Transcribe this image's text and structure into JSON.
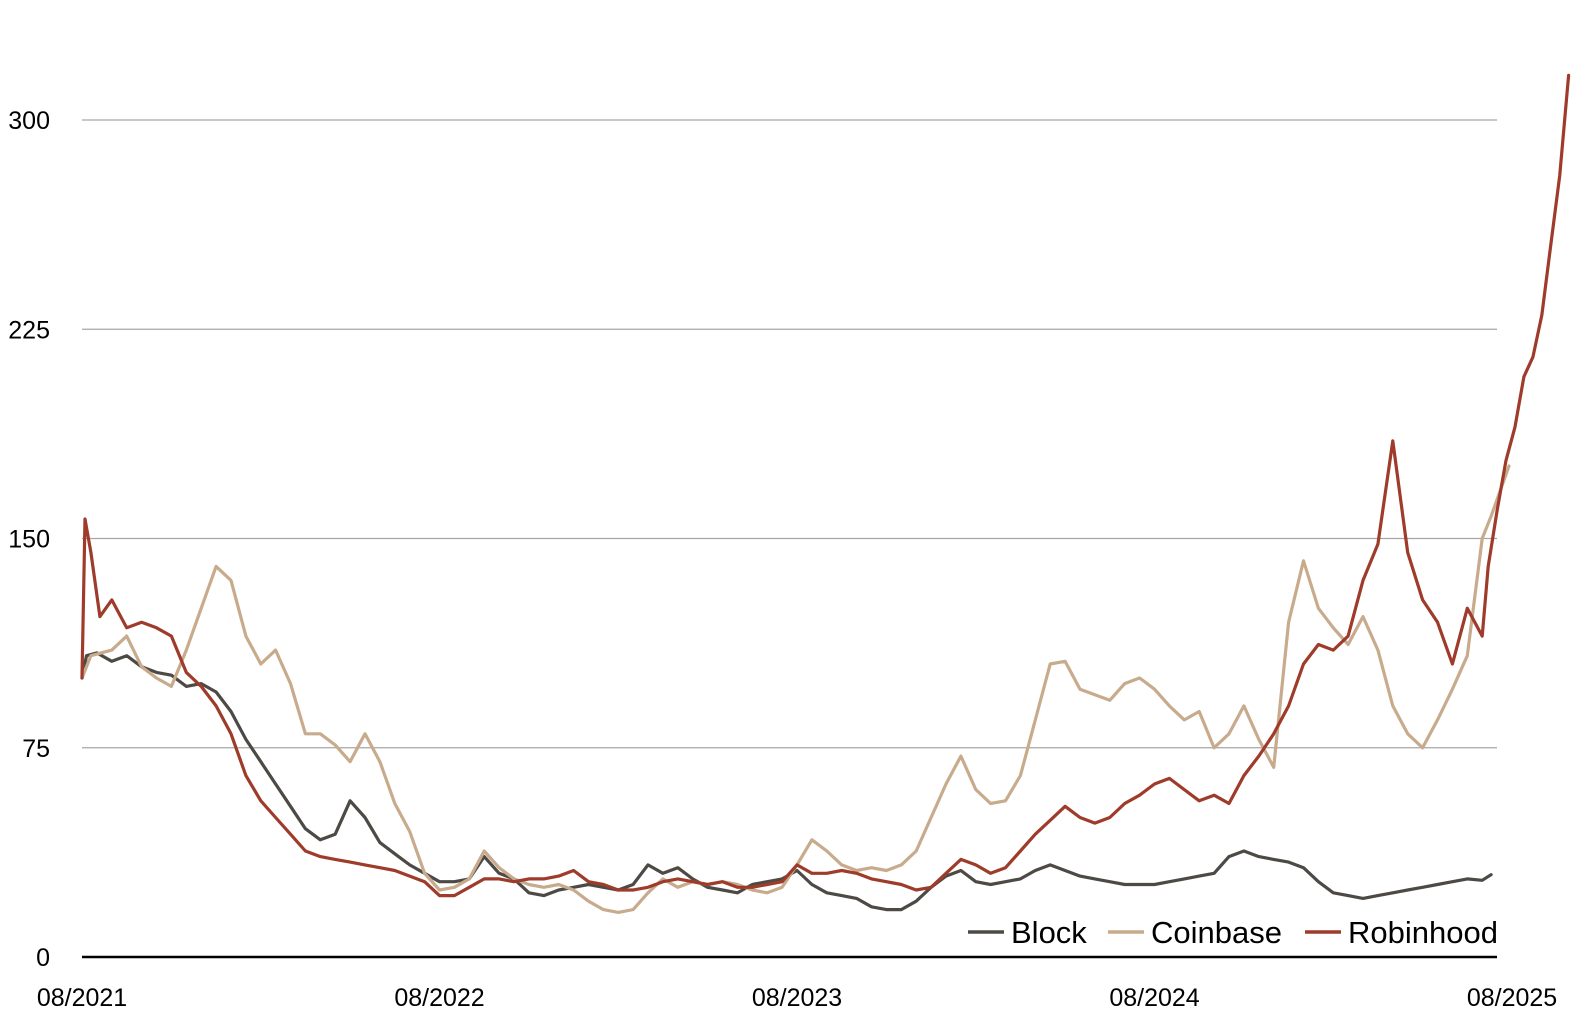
{
  "chart_data": {
    "type": "line",
    "title": "",
    "xlabel": "",
    "ylabel": "",
    "ylim": [
      0,
      315
    ],
    "yticks": [
      0,
      75,
      150,
      225,
      300
    ],
    "xlim": [
      0,
      48
    ],
    "xticks": [
      {
        "x": 0,
        "label": "08/2021"
      },
      {
        "x": 12,
        "label": "08/2022"
      },
      {
        "x": 24,
        "label": "08/2023"
      },
      {
        "x": 36,
        "label": "08/2024"
      },
      {
        "x": 48,
        "label": "08/2025"
      }
    ],
    "grid": true,
    "legend": "bottom-right",
    "series": [
      {
        "name": "Block",
        "color": "#4d4a45",
        "points": [
          [
            0,
            100
          ],
          [
            0.15,
            108
          ],
          [
            0.5,
            109
          ],
          [
            1,
            106
          ],
          [
            1.5,
            108
          ],
          [
            2,
            104
          ],
          [
            2.5,
            102
          ],
          [
            3,
            101
          ],
          [
            3.5,
            97
          ],
          [
            4,
            98
          ],
          [
            4.5,
            95
          ],
          [
            5,
            88
          ],
          [
            5.5,
            78
          ],
          [
            6,
            70
          ],
          [
            6.5,
            62
          ],
          [
            7,
            54
          ],
          [
            7.5,
            46
          ],
          [
            8,
            42
          ],
          [
            8.5,
            44
          ],
          [
            9,
            56
          ],
          [
            9.5,
            50
          ],
          [
            10,
            41
          ],
          [
            10.5,
            37
          ],
          [
            11,
            33
          ],
          [
            11.5,
            30
          ],
          [
            12,
            27
          ],
          [
            12.5,
            27
          ],
          [
            13,
            28
          ],
          [
            13.5,
            36
          ],
          [
            14,
            30
          ],
          [
            14.5,
            28
          ],
          [
            15,
            23
          ],
          [
            15.5,
            22
          ],
          [
            16,
            24
          ],
          [
            16.5,
            25
          ],
          [
            17,
            26
          ],
          [
            17.5,
            25
          ],
          [
            18,
            24
          ],
          [
            18.5,
            26
          ],
          [
            19,
            33
          ],
          [
            19.5,
            30
          ],
          [
            20,
            32
          ],
          [
            20.5,
            28
          ],
          [
            21,
            25
          ],
          [
            21.5,
            24
          ],
          [
            22,
            23
          ],
          [
            22.5,
            26
          ],
          [
            23,
            27
          ],
          [
            23.5,
            28
          ],
          [
            24,
            31
          ],
          [
            24.5,
            26
          ],
          [
            25,
            23
          ],
          [
            25.5,
            22
          ],
          [
            26,
            21
          ],
          [
            26.5,
            18
          ],
          [
            27,
            17
          ],
          [
            27.5,
            17
          ],
          [
            28,
            20
          ],
          [
            28.5,
            25
          ],
          [
            29,
            29
          ],
          [
            29.5,
            31
          ],
          [
            30,
            27
          ],
          [
            30.5,
            26
          ],
          [
            31,
            27
          ],
          [
            31.5,
            28
          ],
          [
            32,
            31
          ],
          [
            32.5,
            33
          ],
          [
            33,
            31
          ],
          [
            33.5,
            29
          ],
          [
            34,
            28
          ],
          [
            34.5,
            27
          ],
          [
            35,
            26
          ],
          [
            35.5,
            26
          ],
          [
            36,
            26
          ],
          [
            36.5,
            27
          ],
          [
            37,
            28
          ],
          [
            37.5,
            29
          ],
          [
            38,
            30
          ],
          [
            38.5,
            36
          ],
          [
            39,
            38
          ],
          [
            39.5,
            36
          ],
          [
            40,
            35
          ],
          [
            40.5,
            34
          ],
          [
            41,
            32
          ],
          [
            41.5,
            27
          ],
          [
            42,
            23
          ],
          [
            42.5,
            22
          ],
          [
            43,
            21
          ],
          [
            43.5,
            22
          ],
          [
            44,
            23
          ],
          [
            44.5,
            24
          ],
          [
            45,
            25
          ],
          [
            45.5,
            26
          ],
          [
            46,
            27
          ],
          [
            46.5,
            28
          ],
          [
            47,
            27.5
          ],
          [
            47.3,
            29.5
          ]
        ]
      },
      {
        "name": "Coinbase",
        "color": "#c7ab8c",
        "points": [
          [
            0,
            100
          ],
          [
            0.3,
            108
          ],
          [
            1,
            110
          ],
          [
            1.5,
            115
          ],
          [
            2,
            104
          ],
          [
            2.5,
            100
          ],
          [
            3,
            97
          ],
          [
            3.5,
            110
          ],
          [
            4,
            125
          ],
          [
            4.5,
            140
          ],
          [
            5,
            135
          ],
          [
            5.5,
            115
          ],
          [
            6,
            105
          ],
          [
            6.5,
            110
          ],
          [
            7,
            98
          ],
          [
            7.5,
            80
          ],
          [
            8,
            80
          ],
          [
            8.5,
            76
          ],
          [
            9,
            70
          ],
          [
            9.5,
            80
          ],
          [
            10,
            70
          ],
          [
            10.5,
            55
          ],
          [
            11,
            45
          ],
          [
            11.5,
            30
          ],
          [
            12,
            24
          ],
          [
            12.5,
            25
          ],
          [
            13,
            28
          ],
          [
            13.5,
            38
          ],
          [
            14,
            32
          ],
          [
            14.5,
            28
          ],
          [
            15,
            26
          ],
          [
            15.5,
            25
          ],
          [
            16,
            26
          ],
          [
            16.5,
            24
          ],
          [
            17,
            20
          ],
          [
            17.5,
            17
          ],
          [
            18,
            16
          ],
          [
            18.5,
            17
          ],
          [
            19,
            23
          ],
          [
            19.5,
            28
          ],
          [
            20,
            25
          ],
          [
            20.5,
            27
          ],
          [
            21,
            26
          ],
          [
            21.5,
            27
          ],
          [
            22,
            26
          ],
          [
            22.5,
            24
          ],
          [
            23,
            23
          ],
          [
            23.5,
            25
          ],
          [
            24,
            33
          ],
          [
            24.5,
            42
          ],
          [
            25,
            38
          ],
          [
            25.5,
            33
          ],
          [
            26,
            31
          ],
          [
            26.5,
            32
          ],
          [
            27,
            31
          ],
          [
            27.5,
            33
          ],
          [
            28,
            38
          ],
          [
            28.5,
            50
          ],
          [
            29,
            62
          ],
          [
            29.5,
            72
          ],
          [
            30,
            60
          ],
          [
            30.5,
            55
          ],
          [
            31,
            56
          ],
          [
            31.5,
            65
          ],
          [
            32,
            85
          ],
          [
            32.5,
            105
          ],
          [
            33,
            106
          ],
          [
            33.5,
            96
          ],
          [
            34,
            94
          ],
          [
            34.5,
            92
          ],
          [
            35,
            98
          ],
          [
            35.5,
            100
          ],
          [
            36,
            96
          ],
          [
            36.5,
            90
          ],
          [
            37,
            85
          ],
          [
            37.5,
            88
          ],
          [
            38,
            75
          ],
          [
            38.5,
            80
          ],
          [
            39,
            90
          ],
          [
            39.5,
            78
          ],
          [
            40,
            68
          ],
          [
            40.5,
            120
          ],
          [
            41,
            142
          ],
          [
            41.5,
            125
          ],
          [
            42,
            118
          ],
          [
            42.5,
            112
          ],
          [
            43,
            122
          ],
          [
            43.5,
            110
          ],
          [
            44,
            90
          ],
          [
            44.5,
            80
          ],
          [
            45,
            75
          ],
          [
            45.5,
            85
          ],
          [
            46,
            96
          ],
          [
            46.5,
            108
          ],
          [
            47,
            150
          ],
          [
            47.3,
            158
          ],
          [
            47.6,
            167
          ],
          [
            47.9,
            176
          ]
        ]
      },
      {
        "name": "Robinhood",
        "color": "#9e3b2b",
        "points": [
          [
            0,
            100
          ],
          [
            0.1,
            157
          ],
          [
            0.3,
            145
          ],
          [
            0.6,
            122
          ],
          [
            1,
            128
          ],
          [
            1.5,
            118
          ],
          [
            2,
            120
          ],
          [
            2.5,
            118
          ],
          [
            3,
            115
          ],
          [
            3.5,
            102
          ],
          [
            4,
            97
          ],
          [
            4.5,
            90
          ],
          [
            5,
            80
          ],
          [
            5.5,
            65
          ],
          [
            6,
            56
          ],
          [
            6.5,
            50
          ],
          [
            7,
            44
          ],
          [
            7.5,
            38
          ],
          [
            8,
            36
          ],
          [
            8.5,
            35
          ],
          [
            9,
            34
          ],
          [
            9.5,
            33
          ],
          [
            10,
            32
          ],
          [
            10.5,
            31
          ],
          [
            11,
            29
          ],
          [
            11.5,
            27
          ],
          [
            12,
            22
          ],
          [
            12.5,
            22
          ],
          [
            13,
            25
          ],
          [
            13.5,
            28
          ],
          [
            14,
            28
          ],
          [
            14.5,
            27
          ],
          [
            15,
            28
          ],
          [
            15.5,
            28
          ],
          [
            16,
            29
          ],
          [
            16.5,
            31
          ],
          [
            17,
            27
          ],
          [
            17.5,
            26
          ],
          [
            18,
            24
          ],
          [
            18.5,
            24
          ],
          [
            19,
            25
          ],
          [
            19.5,
            27
          ],
          [
            20,
            28
          ],
          [
            20.5,
            27
          ],
          [
            21,
            26
          ],
          [
            21.5,
            27
          ],
          [
            22,
            25
          ],
          [
            22.5,
            25
          ],
          [
            23,
            26
          ],
          [
            23.5,
            27
          ],
          [
            24,
            33
          ],
          [
            24.5,
            30
          ],
          [
            25,
            30
          ],
          [
            25.5,
            31
          ],
          [
            26,
            30
          ],
          [
            26.5,
            28
          ],
          [
            27,
            27
          ],
          [
            27.5,
            26
          ],
          [
            28,
            24
          ],
          [
            28.5,
            25
          ],
          [
            29,
            30
          ],
          [
            29.5,
            35
          ],
          [
            30,
            33
          ],
          [
            30.5,
            30
          ],
          [
            31,
            32
          ],
          [
            31.5,
            38
          ],
          [
            32,
            44
          ],
          [
            32.5,
            49
          ],
          [
            33,
            54
          ],
          [
            33.5,
            50
          ],
          [
            34,
            48
          ],
          [
            34.5,
            50
          ],
          [
            35,
            55
          ],
          [
            35.5,
            58
          ],
          [
            36,
            62
          ],
          [
            36.5,
            64
          ],
          [
            37,
            60
          ],
          [
            37.5,
            56
          ],
          [
            38,
            58
          ],
          [
            38.5,
            55
          ],
          [
            39,
            65
          ],
          [
            39.5,
            72
          ],
          [
            40,
            80
          ],
          [
            40.5,
            90
          ],
          [
            41,
            105
          ],
          [
            41.5,
            112
          ],
          [
            42,
            110
          ],
          [
            42.5,
            115
          ],
          [
            43,
            135
          ],
          [
            43.5,
            148
          ],
          [
            44,
            185
          ],
          [
            44.5,
            145
          ],
          [
            45,
            128
          ],
          [
            45.5,
            120
          ],
          [
            46,
            105
          ],
          [
            46.5,
            125
          ],
          [
            47,
            115
          ],
          [
            47.2,
            140
          ],
          [
            47.5,
            160
          ],
          [
            47.8,
            178
          ],
          [
            48.1,
            190
          ],
          [
            48.4,
            208
          ],
          [
            48.7,
            215
          ],
          [
            49,
            230
          ],
          [
            49.3,
            255
          ],
          [
            49.6,
            280
          ],
          [
            49.9,
            316
          ]
        ]
      }
    ]
  }
}
